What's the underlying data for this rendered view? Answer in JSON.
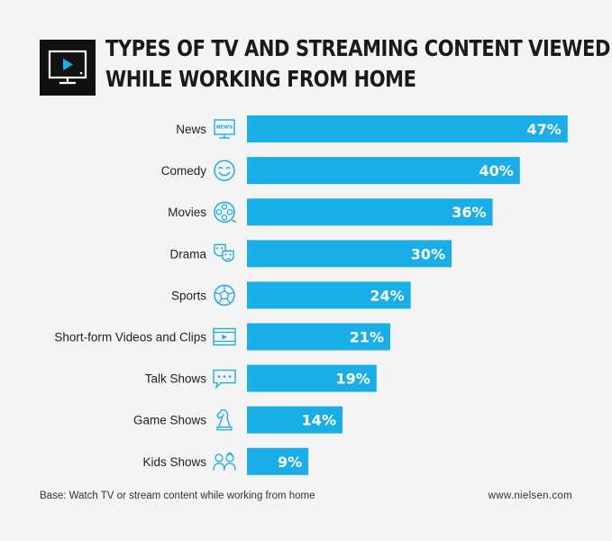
{
  "title_lines": [
    "TYPES OF TV AND STREAMING CONTENT VIEWED",
    "WHILE WORKING FROM HOME"
  ],
  "footnote": "Base: Watch TV or stream content while working from home",
  "source": "www.nielsen.com",
  "colors": {
    "bar": "#1aaee8",
    "icon": "#1aaee8",
    "text": "#222222",
    "header_box": "#111111",
    "background": "#f4f4f4"
  },
  "chart_data": {
    "type": "bar",
    "orientation": "horizontal",
    "title": "TYPES OF TV AND STREAMING CONTENT VIEWED WHILE WORKING FROM HOME",
    "categories": [
      "News",
      "Comedy",
      "Movies",
      "Drama",
      "Sports",
      "Short-form Videos and Clips",
      "Talk Shows",
      "Game Shows",
      "Kids Shows"
    ],
    "values": [
      47,
      40,
      36,
      30,
      24,
      21,
      19,
      14,
      9
    ],
    "value_labels": [
      "47%",
      "40%",
      "36%",
      "30%",
      "24%",
      "21%",
      "19%",
      "14%",
      "9%"
    ],
    "icons": [
      "news-tv-icon",
      "smiley-icon",
      "film-reel-icon",
      "drama-masks-icon",
      "soccer-ball-icon",
      "video-clip-icon",
      "speech-bubble-icon",
      "chess-knight-icon",
      "kids-icon"
    ],
    "unit": "%",
    "grid": false,
    "legend": "none"
  }
}
